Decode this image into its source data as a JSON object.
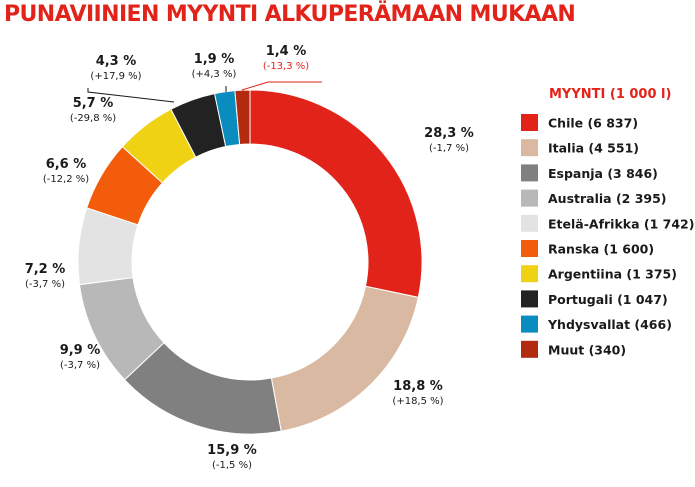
{
  "chart_data": {
    "type": "pie",
    "title": "PUNAVIINIEN MYYNTI ALKUPERÄMAAN MUKAAN",
    "legend_title": "MYYNTI (1 000 l)",
    "legend_placement": "right",
    "slices": [
      {
        "label": "Chile (6 837)",
        "value": 28.3,
        "value_label": "28,3 %",
        "change_label": "(-1,7 %)",
        "color": "#e2231a"
      },
      {
        "label": "Italia (4 551)",
        "value": 18.8,
        "value_label": "18,8 %",
        "change_label": "(+18,5 %)",
        "color": "#d9b9a2"
      },
      {
        "label": "Espanja (3 846)",
        "value": 15.9,
        "value_label": "15,9 %",
        "change_label": "(-1,5 %)",
        "color": "#808080"
      },
      {
        "label": "Australia (2 395)",
        "value": 9.9,
        "value_label": "9,9 %",
        "change_label": "(-3,7 %)",
        "color": "#b8b8b8"
      },
      {
        "label": "Etelä-Afrikka (1 742)",
        "value": 7.2,
        "value_label": "7,2 %",
        "change_label": "(-3,7 %)",
        "color": "#e3e3e3"
      },
      {
        "label": "Ranska (1 600)",
        "value": 6.6,
        "value_label": "6,6 %",
        "change_label": "(-12,2 %)",
        "color": "#f25c0a"
      },
      {
        "label": "Argentiina (1 375)",
        "value": 5.7,
        "value_label": "5,7 %",
        "change_label": "(-29,8 %)",
        "color": "#f0d214"
      },
      {
        "label": "Portugali (1 047)",
        "value": 4.3,
        "value_label": "4,3 %",
        "change_label": "(+17,9 %)",
        "color": "#222222"
      },
      {
        "label": "Yhdysvallat (466)",
        "value": 1.9,
        "value_label": "1,9 %",
        "change_label": "(+4,3 %)",
        "color": "#0a8cbf"
      },
      {
        "label": "Muut (340)",
        "value": 1.4,
        "value_label": "1,4 %",
        "change_label": "(-13,3 %)",
        "color": "#b22a10"
      }
    ]
  }
}
